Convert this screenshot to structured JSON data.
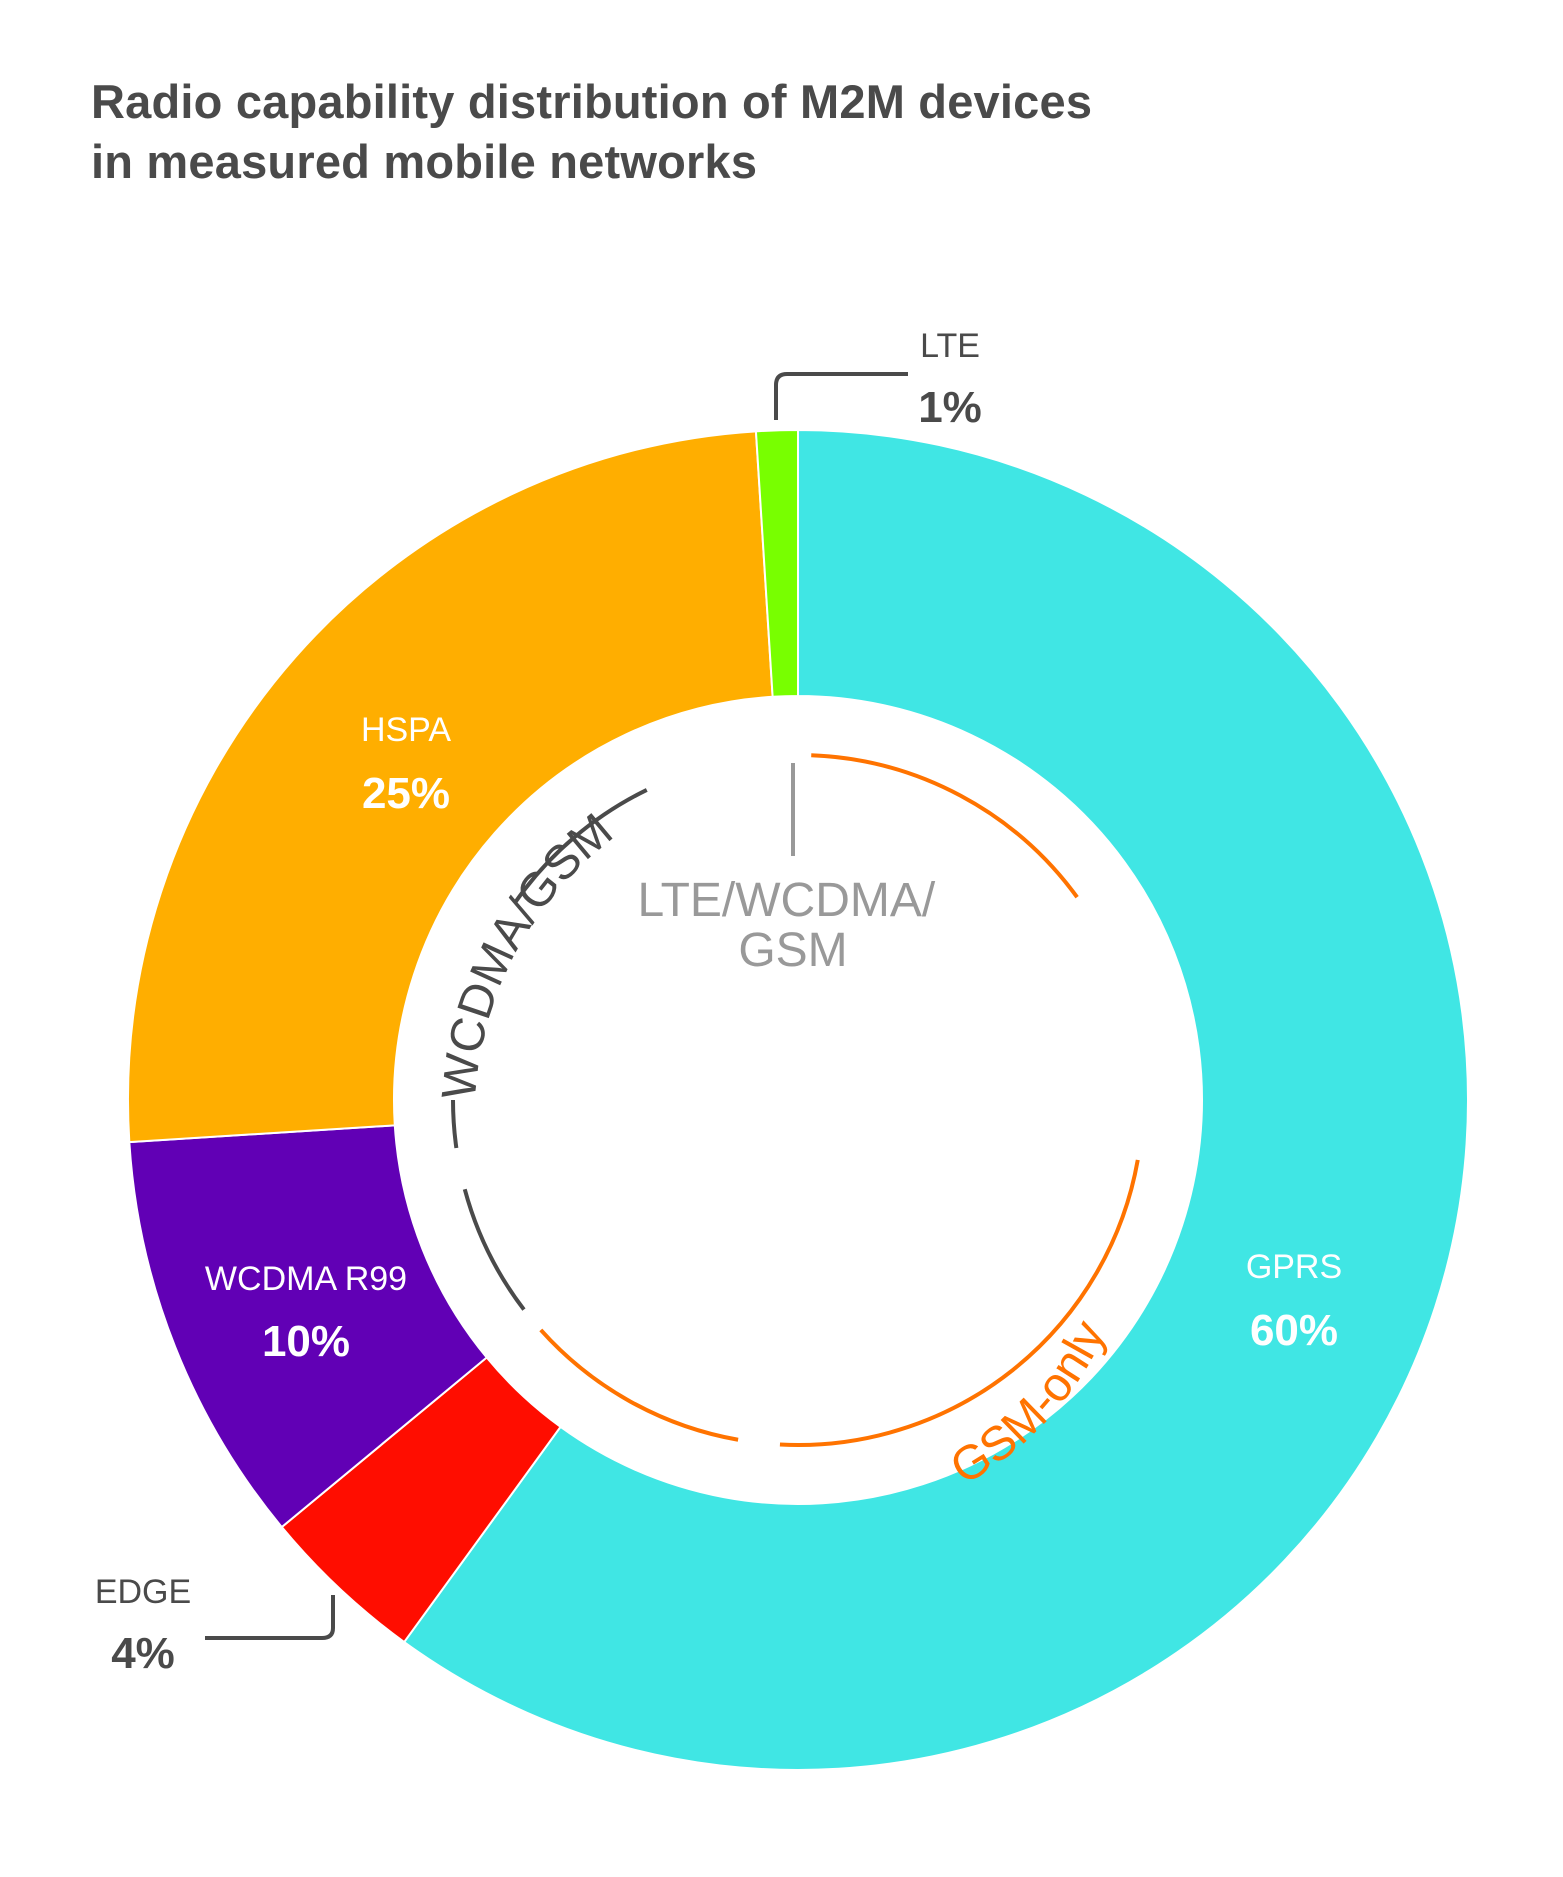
{
  "title_lines": [
    "Radio capability distribution of M2M devices",
    "in measured mobile networks"
  ],
  "chart_data": {
    "type": "pie",
    "title": "Radio capability distribution of M2M devices in measured mobile networks",
    "donut": true,
    "slices": [
      {
        "label": "GPRS",
        "value": 60,
        "value_label": "60%",
        "color": "#40e6e4",
        "label_color": "#ffffff"
      },
      {
        "label": "EDGE",
        "value": 4,
        "value_label": "4%",
        "color": "#ff0d00",
        "label_color": "#4a4a4a"
      },
      {
        "label": "WCDMA R99",
        "value": 10,
        "value_label": "10%",
        "color": "#6100b5",
        "label_color": "#ffffff"
      },
      {
        "label": "HSPA",
        "value": 25,
        "value_label": "25%",
        "color": "#ffae00",
        "label_color": "#ffffff"
      },
      {
        "label": "LTE",
        "value": 1,
        "value_label": "1%",
        "color": "#78ff00",
        "label_color": "#4a4a4a"
      }
    ],
    "inner_groups": [
      {
        "label": "GSM-only",
        "slices": [
          "GPRS",
          "EDGE"
        ],
        "color": "#ff7300"
      },
      {
        "label": "WCDMA/GSM",
        "slices": [
          "WCDMA R99",
          "HSPA"
        ],
        "color": "#4a4a4a"
      },
      {
        "label": "LTE/WCDMA/\nGSM",
        "slices": [
          "LTE"
        ],
        "color": "#999999"
      }
    ]
  }
}
